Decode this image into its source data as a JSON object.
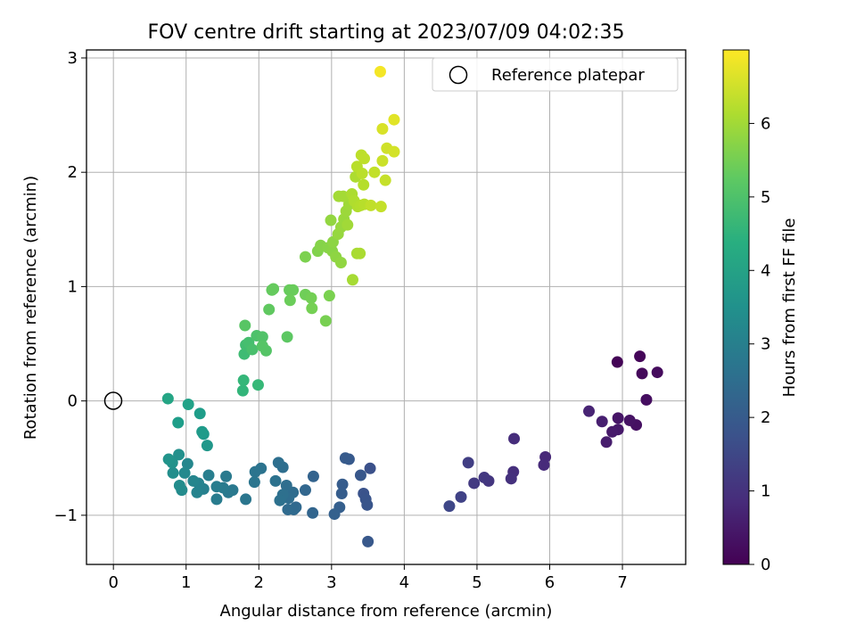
{
  "chart_data": {
    "type": "scatter",
    "title": "FOV centre drift starting at 2023/07/09 04:02:35",
    "xlabel": "Angular distance from reference (arcmin)",
    "ylabel": "Rotation from reference (arcmin)",
    "xlim": [
      -0.37,
      7.87
    ],
    "ylim": [
      -1.43,
      3.07
    ],
    "xticks": [
      0,
      1,
      2,
      3,
      4,
      5,
      6,
      7
    ],
    "yticks": [
      -1,
      0,
      1,
      2,
      3
    ],
    "grid": true,
    "legend": {
      "position": "top-right",
      "entries": [
        "Reference platepar"
      ]
    },
    "reference_point": {
      "x": 0,
      "y": 0
    },
    "colorbar": {
      "label": "Hours from first FF file",
      "range": [
        0,
        7
      ],
      "ticks": [
        0,
        1,
        2,
        3,
        4,
        5,
        6
      ],
      "colormap": "viridis"
    },
    "points": [
      {
        "x": 6.93,
        "y": 0.34,
        "c": 0.05
      },
      {
        "x": 7.24,
        "y": 0.39,
        "c": 0.1
      },
      {
        "x": 7.27,
        "y": 0.24,
        "c": 0.15
      },
      {
        "x": 7.48,
        "y": 0.25,
        "c": 0.2
      },
      {
        "x": 7.33,
        "y": 0.01,
        "c": 0.25
      },
      {
        "x": 7.19,
        "y": -0.21,
        "c": 0.3
      },
      {
        "x": 7.1,
        "y": -0.17,
        "c": 0.35
      },
      {
        "x": 6.94,
        "y": -0.15,
        "c": 0.4
      },
      {
        "x": 6.94,
        "y": -0.25,
        "c": 0.45
      },
      {
        "x": 6.86,
        "y": -0.27,
        "c": 0.5
      },
      {
        "x": 6.78,
        "y": -0.36,
        "c": 0.55
      },
      {
        "x": 6.72,
        "y": -0.18,
        "c": 0.6
      },
      {
        "x": 6.54,
        "y": -0.09,
        "c": 0.7
      },
      {
        "x": 5.94,
        "y": -0.49,
        "c": 0.8
      },
      {
        "x": 5.92,
        "y": -0.56,
        "c": 0.85
      },
      {
        "x": 5.51,
        "y": -0.33,
        "c": 0.9
      },
      {
        "x": 5.5,
        "y": -0.62,
        "c": 0.95
      },
      {
        "x": 5.47,
        "y": -0.68,
        "c": 1.0
      },
      {
        "x": 5.16,
        "y": -0.7,
        "c": 1.1
      },
      {
        "x": 5.1,
        "y": -0.67,
        "c": 1.15
      },
      {
        "x": 4.96,
        "y": -0.72,
        "c": 1.2
      },
      {
        "x": 4.88,
        "y": -0.54,
        "c": 1.3
      },
      {
        "x": 4.78,
        "y": -0.84,
        "c": 1.4
      },
      {
        "x": 4.62,
        "y": -0.92,
        "c": 1.5
      },
      {
        "x": 3.53,
        "y": -0.59,
        "c": 1.75
      },
      {
        "x": 3.44,
        "y": -0.81,
        "c": 1.8
      },
      {
        "x": 3.47,
        "y": -0.86,
        "c": 1.83
      },
      {
        "x": 3.49,
        "y": -0.91,
        "c": 1.86
      },
      {
        "x": 3.4,
        "y": -0.65,
        "c": 1.9
      },
      {
        "x": 3.5,
        "y": -1.23,
        "c": 1.92
      },
      {
        "x": 3.24,
        "y": -0.51,
        "c": 1.95
      },
      {
        "x": 3.19,
        "y": -0.5,
        "c": 2.0
      },
      {
        "x": 3.15,
        "y": -0.73,
        "c": 2.03
      },
      {
        "x": 3.14,
        "y": -0.81,
        "c": 2.06
      },
      {
        "x": 3.11,
        "y": -0.93,
        "c": 2.1
      },
      {
        "x": 3.04,
        "y": -0.99,
        "c": 2.15
      },
      {
        "x": 2.75,
        "y": -0.66,
        "c": 2.2
      },
      {
        "x": 2.74,
        "y": -0.98,
        "c": 2.25
      },
      {
        "x": 2.64,
        "y": -0.78,
        "c": 2.3
      },
      {
        "x": 2.51,
        "y": -0.93,
        "c": 2.35
      },
      {
        "x": 2.48,
        "y": -0.95,
        "c": 2.38
      },
      {
        "x": 2.4,
        "y": -0.95,
        "c": 2.42
      },
      {
        "x": 2.47,
        "y": -0.8,
        "c": 2.45
      },
      {
        "x": 2.41,
        "y": -0.85,
        "c": 2.48
      },
      {
        "x": 2.38,
        "y": -0.74,
        "c": 2.5
      },
      {
        "x": 2.33,
        "y": -0.58,
        "c": 2.52
      },
      {
        "x": 2.27,
        "y": -0.54,
        "c": 2.55
      },
      {
        "x": 2.33,
        "y": -0.82,
        "c": 2.58
      },
      {
        "x": 2.29,
        "y": -0.87,
        "c": 2.6
      },
      {
        "x": 2.23,
        "y": -0.7,
        "c": 2.63
      },
      {
        "x": 2.03,
        "y": -0.59,
        "c": 2.66
      },
      {
        "x": 1.95,
        "y": -0.62,
        "c": 2.7
      },
      {
        "x": 1.94,
        "y": -0.71,
        "c": 2.73
      },
      {
        "x": 1.82,
        "y": -0.86,
        "c": 2.76
      },
      {
        "x": 1.64,
        "y": -0.78,
        "c": 2.8
      },
      {
        "x": 1.58,
        "y": -0.8,
        "c": 2.83
      },
      {
        "x": 1.55,
        "y": -0.66,
        "c": 2.86
      },
      {
        "x": 1.51,
        "y": -0.76,
        "c": 2.9
      },
      {
        "x": 1.42,
        "y": -0.86,
        "c": 2.93
      },
      {
        "x": 1.42,
        "y": -0.75,
        "c": 2.96
      },
      {
        "x": 1.31,
        "y": -0.65,
        "c": 3.0
      },
      {
        "x": 1.24,
        "y": -0.77,
        "c": 3.05
      },
      {
        "x": 1.17,
        "y": -0.72,
        "c": 3.1
      },
      {
        "x": 1.15,
        "y": -0.8,
        "c": 3.15
      },
      {
        "x": 1.1,
        "y": -0.7,
        "c": 3.2
      },
      {
        "x": 1.02,
        "y": -0.55,
        "c": 3.25
      },
      {
        "x": 0.98,
        "y": -0.63,
        "c": 3.3
      },
      {
        "x": 0.94,
        "y": -0.78,
        "c": 3.35
      },
      {
        "x": 0.91,
        "y": -0.74,
        "c": 3.4
      },
      {
        "x": 0.82,
        "y": -0.63,
        "c": 3.45
      },
      {
        "x": 0.9,
        "y": -0.47,
        "c": 3.5
      },
      {
        "x": 0.81,
        "y": -0.54,
        "c": 3.55
      },
      {
        "x": 0.76,
        "y": -0.51,
        "c": 3.6
      },
      {
        "x": 1.29,
        "y": -0.39,
        "c": 3.7
      },
      {
        "x": 1.24,
        "y": -0.29,
        "c": 3.75
      },
      {
        "x": 1.22,
        "y": -0.27,
        "c": 3.8
      },
      {
        "x": 1.19,
        "y": -0.11,
        "c": 3.85
      },
      {
        "x": 0.89,
        "y": -0.19,
        "c": 3.9
      },
      {
        "x": 1.03,
        "y": -0.03,
        "c": 4.0
      },
      {
        "x": 0.75,
        "y": 0.02,
        "c": 4.1
      },
      {
        "x": 1.78,
        "y": 0.09,
        "c": 4.6
      },
      {
        "x": 1.79,
        "y": 0.18,
        "c": 4.65
      },
      {
        "x": 1.99,
        "y": 0.14,
        "c": 4.7
      },
      {
        "x": 1.8,
        "y": 0.41,
        "c": 4.8
      },
      {
        "x": 1.82,
        "y": 0.49,
        "c": 4.85
      },
      {
        "x": 1.86,
        "y": 0.51,
        "c": 4.9
      },
      {
        "x": 1.91,
        "y": 0.45,
        "c": 4.95
      },
      {
        "x": 1.97,
        "y": 0.57,
        "c": 5.0
      },
      {
        "x": 2.05,
        "y": 0.56,
        "c": 5.05
      },
      {
        "x": 2.1,
        "y": 0.44,
        "c": 5.1
      },
      {
        "x": 2.05,
        "y": 0.48,
        "c": 5.12
      },
      {
        "x": 1.81,
        "y": 0.66,
        "c": 5.15
      },
      {
        "x": 2.39,
        "y": 0.56,
        "c": 5.2
      },
      {
        "x": 2.14,
        "y": 0.8,
        "c": 5.25
      },
      {
        "x": 2.18,
        "y": 0.97,
        "c": 5.3
      },
      {
        "x": 2.2,
        "y": 0.98,
        "c": 5.32
      },
      {
        "x": 2.42,
        "y": 0.97,
        "c": 5.35
      },
      {
        "x": 2.47,
        "y": 0.97,
        "c": 5.38
      },
      {
        "x": 2.43,
        "y": 0.88,
        "c": 5.4
      },
      {
        "x": 2.64,
        "y": 0.93,
        "c": 5.45
      },
      {
        "x": 2.72,
        "y": 0.9,
        "c": 5.5
      },
      {
        "x": 2.73,
        "y": 0.81,
        "c": 5.52
      },
      {
        "x": 2.92,
        "y": 0.7,
        "c": 5.55
      },
      {
        "x": 2.97,
        "y": 0.92,
        "c": 5.58
      },
      {
        "x": 2.64,
        "y": 1.26,
        "c": 5.6
      },
      {
        "x": 2.81,
        "y": 1.31,
        "c": 5.65
      },
      {
        "x": 2.85,
        "y": 1.36,
        "c": 5.7
      },
      {
        "x": 2.95,
        "y": 1.34,
        "c": 5.72
      },
      {
        "x": 3.01,
        "y": 1.31,
        "c": 5.75
      },
      {
        "x": 3.02,
        "y": 1.39,
        "c": 5.78
      },
      {
        "x": 3.06,
        "y": 1.26,
        "c": 5.8
      },
      {
        "x": 3.13,
        "y": 1.21,
        "c": 5.83
      },
      {
        "x": 2.99,
        "y": 1.58,
        "c": 5.85
      },
      {
        "x": 3.09,
        "y": 1.46,
        "c": 5.88
      },
      {
        "x": 3.13,
        "y": 1.52,
        "c": 5.9
      },
      {
        "x": 3.17,
        "y": 1.59,
        "c": 5.92
      },
      {
        "x": 3.2,
        "y": 1.66,
        "c": 5.95
      },
      {
        "x": 3.24,
        "y": 1.72,
        "c": 5.98
      },
      {
        "x": 3.22,
        "y": 1.54,
        "c": 6.0
      },
      {
        "x": 3.1,
        "y": 1.79,
        "c": 6.02
      },
      {
        "x": 3.16,
        "y": 1.79,
        "c": 6.04
      },
      {
        "x": 3.29,
        "y": 1.06,
        "c": 6.06
      },
      {
        "x": 3.35,
        "y": 1.29,
        "c": 6.08
      },
      {
        "x": 3.39,
        "y": 1.29,
        "c": 6.1
      },
      {
        "x": 3.28,
        "y": 1.81,
        "c": 6.12
      },
      {
        "x": 3.33,
        "y": 1.96,
        "c": 6.14
      },
      {
        "x": 3.31,
        "y": 1.75,
        "c": 6.16
      },
      {
        "x": 3.36,
        "y": 1.7,
        "c": 6.18
      },
      {
        "x": 3.4,
        "y": 1.71,
        "c": 6.2
      },
      {
        "x": 3.44,
        "y": 1.89,
        "c": 6.22
      },
      {
        "x": 3.45,
        "y": 1.72,
        "c": 6.24
      },
      {
        "x": 3.35,
        "y": 2.05,
        "c": 6.26
      },
      {
        "x": 3.42,
        "y": 1.99,
        "c": 6.28
      },
      {
        "x": 3.41,
        "y": 2.15,
        "c": 6.3
      },
      {
        "x": 3.45,
        "y": 2.12,
        "c": 6.32
      },
      {
        "x": 3.54,
        "y": 1.71,
        "c": 6.34
      },
      {
        "x": 3.59,
        "y": 2.0,
        "c": 6.36
      },
      {
        "x": 3.68,
        "y": 1.7,
        "c": 6.38
      },
      {
        "x": 3.74,
        "y": 1.93,
        "c": 6.4
      },
      {
        "x": 3.7,
        "y": 2.1,
        "c": 6.45
      },
      {
        "x": 3.76,
        "y": 2.21,
        "c": 6.5
      },
      {
        "x": 3.86,
        "y": 2.18,
        "c": 6.55
      },
      {
        "x": 3.7,
        "y": 2.38,
        "c": 6.6
      },
      {
        "x": 3.86,
        "y": 2.46,
        "c": 6.7
      },
      {
        "x": 3.67,
        "y": 2.88,
        "c": 6.9
      }
    ]
  }
}
